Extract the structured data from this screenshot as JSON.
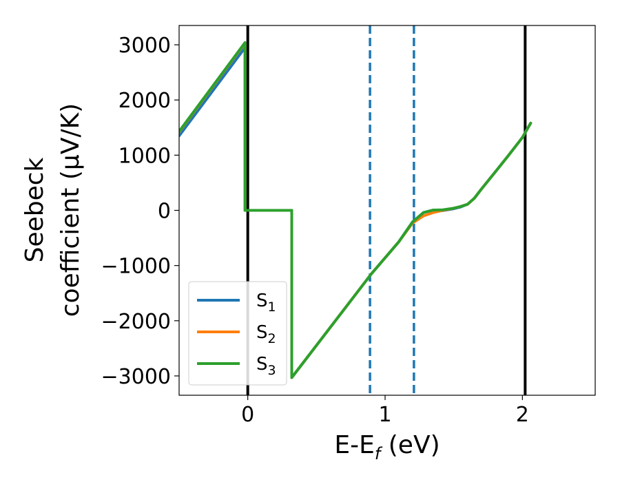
{
  "chart_data": {
    "type": "line",
    "xlabel": "E-E",
    "xlabel_sub": "f",
    "xlabel_unit": " (eV)",
    "ylabel_line1": "Seebeck",
    "ylabel_line2": "coefficient  (μV/K)",
    "xlim": [
      -0.5,
      2.53
    ],
    "ylim": [
      -3350,
      3350
    ],
    "x_ticks": [
      0,
      1,
      2
    ],
    "x_tick_labels": [
      "0",
      "1",
      "2"
    ],
    "y_ticks": [
      3000,
      2000,
      1000,
      0,
      -1000,
      -2000,
      -3000
    ],
    "y_tick_labels": [
      "3000",
      "2000",
      "1000",
      "0",
      "−1000",
      "−2000",
      "−3000"
    ],
    "grid": false,
    "legend_position": "lower-left",
    "vertical_lines": [
      {
        "x": 0.0,
        "style": "solid",
        "color": "#000000"
      },
      {
        "x": 2.02,
        "style": "solid",
        "color": "#000000"
      },
      {
        "x": 0.89,
        "style": "dashed",
        "color": "#1f77b4"
      },
      {
        "x": 1.21,
        "style": "dashed",
        "color": "#1f77b4"
      }
    ],
    "series": [
      {
        "name": "S",
        "subscript": "1",
        "color": "#1f77b4",
        "points": [
          [
            -0.5,
            1350
          ],
          [
            -0.02,
            2950
          ],
          [
            -0.02,
            0
          ],
          [
            0.32,
            0
          ],
          [
            0.32,
            -3030
          ],
          [
            0.9,
            -1150
          ],
          [
            1.0,
            -860
          ],
          [
            1.1,
            -570
          ],
          [
            1.2,
            -210
          ],
          [
            1.28,
            -40
          ],
          [
            1.35,
            5
          ],
          [
            1.42,
            -5
          ],
          [
            1.5,
            30
          ],
          [
            1.55,
            60
          ],
          [
            1.6,
            110
          ],
          [
            1.65,
            220
          ],
          [
            1.7,
            380
          ],
          [
            1.8,
            690
          ],
          [
            1.9,
            1000
          ],
          [
            2.0,
            1320
          ],
          [
            2.06,
            1580
          ]
        ]
      },
      {
        "name": "S",
        "subscript": "2",
        "color": "#ff7f0e",
        "points": [
          [
            -0.5,
            1420
          ],
          [
            -0.02,
            3030
          ],
          [
            -0.02,
            0
          ],
          [
            0.32,
            0
          ],
          [
            0.32,
            -3030
          ],
          [
            0.9,
            -1150
          ],
          [
            1.0,
            -860
          ],
          [
            1.1,
            -570
          ],
          [
            1.2,
            -230
          ],
          [
            1.28,
            -100
          ],
          [
            1.35,
            -40
          ],
          [
            1.42,
            0
          ],
          [
            1.5,
            40
          ],
          [
            1.55,
            70
          ],
          [
            1.6,
            110
          ],
          [
            1.65,
            220
          ],
          [
            1.7,
            380
          ],
          [
            1.8,
            690
          ],
          [
            1.9,
            1000
          ],
          [
            2.0,
            1320
          ],
          [
            2.06,
            1580
          ]
        ]
      },
      {
        "name": "S",
        "subscript": "3",
        "color": "#2ca02c",
        "points": [
          [
            -0.5,
            1430
          ],
          [
            -0.02,
            3040
          ],
          [
            -0.02,
            0
          ],
          [
            0.32,
            0
          ],
          [
            0.32,
            -3030
          ],
          [
            0.9,
            -1150
          ],
          [
            1.0,
            -860
          ],
          [
            1.1,
            -570
          ],
          [
            1.2,
            -210
          ],
          [
            1.28,
            -40
          ],
          [
            1.35,
            5
          ],
          [
            1.42,
            10
          ],
          [
            1.5,
            40
          ],
          [
            1.55,
            70
          ],
          [
            1.6,
            110
          ],
          [
            1.65,
            220
          ],
          [
            1.7,
            380
          ],
          [
            1.8,
            690
          ],
          [
            1.9,
            1000
          ],
          [
            2.0,
            1320
          ],
          [
            2.06,
            1580
          ]
        ]
      }
    ]
  }
}
